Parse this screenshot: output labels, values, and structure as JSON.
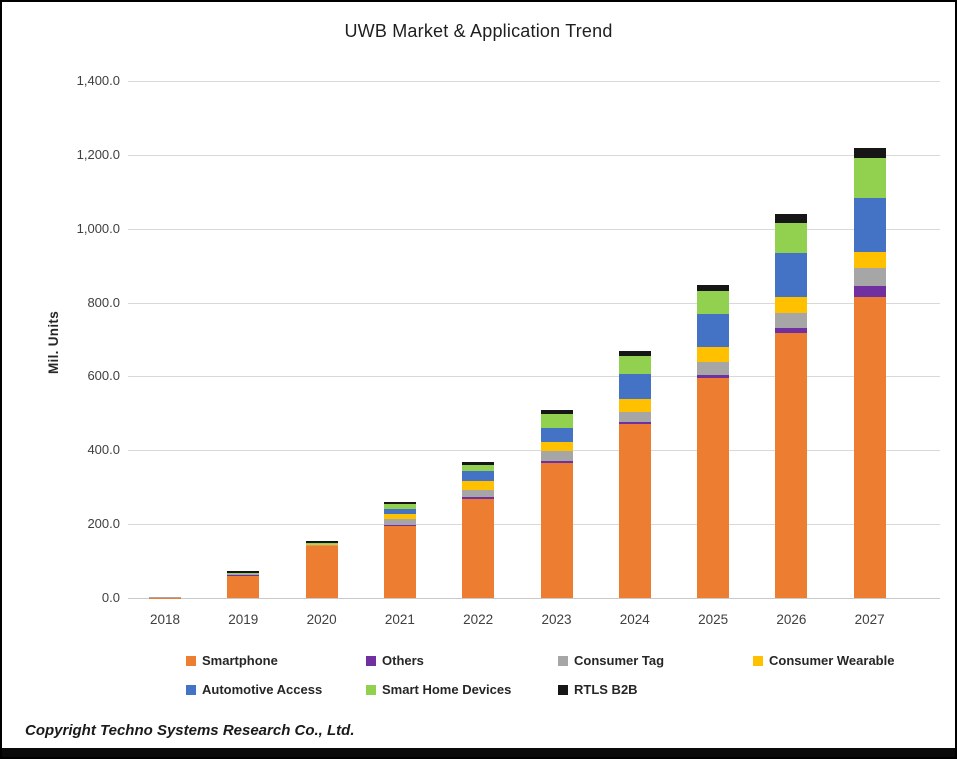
{
  "title": "UWB Market & Application Trend",
  "axes": {
    "y_title": "Mil. Units"
  },
  "footer": {
    "copyright": "Copyright Techno Systems Research Co., Ltd."
  },
  "chart_data": {
    "type": "bar",
    "stacked": true,
    "title": "UWB Market & Application Trend",
    "ylabel": "Mil. Units",
    "xlabel": "",
    "ylim": [
      0,
      1400
    ],
    "grid": true,
    "legend_position": "bottom",
    "y_ticks": [
      "0.0",
      "200.0",
      "400.0",
      "600.0",
      "800.0",
      "1,000.0",
      "1,200.0",
      "1,400.0"
    ],
    "categories": [
      "2018",
      "2019",
      "2020",
      "2021",
      "2022",
      "2023",
      "2024",
      "2025",
      "2026",
      "2027"
    ],
    "series": [
      {
        "name": "Smartphone",
        "color": "#ED7D31",
        "values": [
          1,
          60,
          140,
          195,
          268,
          365,
          470,
          595,
          717,
          816
        ]
      },
      {
        "name": "Others",
        "color": "#7030A0",
        "values": [
          0,
          1,
          1,
          2,
          6,
          5,
          6,
          9,
          13,
          30
        ]
      },
      {
        "name": "Consumer Tag",
        "color": "#A6A6A6",
        "values": [
          2,
          3,
          3,
          18,
          18,
          27,
          28,
          34,
          41,
          47
        ]
      },
      {
        "name": "Consumer Wearable",
        "color": "#FFC000",
        "values": [
          0,
          1,
          2,
          13,
          24,
          25,
          36,
          42,
          45,
          45
        ]
      },
      {
        "name": "Automotive Access",
        "color": "#4472C4",
        "values": [
          0,
          1,
          1,
          14,
          27,
          39,
          66,
          88,
          117,
          145
        ]
      },
      {
        "name": "Smart Home Devices",
        "color": "#92D050",
        "values": [
          0,
          1,
          1,
          13,
          18,
          36,
          49,
          63,
          83,
          108
        ]
      },
      {
        "name": "RTLS B2B",
        "color": "#161616",
        "values": [
          1,
          5,
          5,
          4,
          7,
          11,
          15,
          16,
          24,
          27
        ]
      }
    ],
    "totals": [
      4,
      72,
      153,
      259,
      368,
      508,
      670,
      847,
      1040,
      1218
    ]
  }
}
